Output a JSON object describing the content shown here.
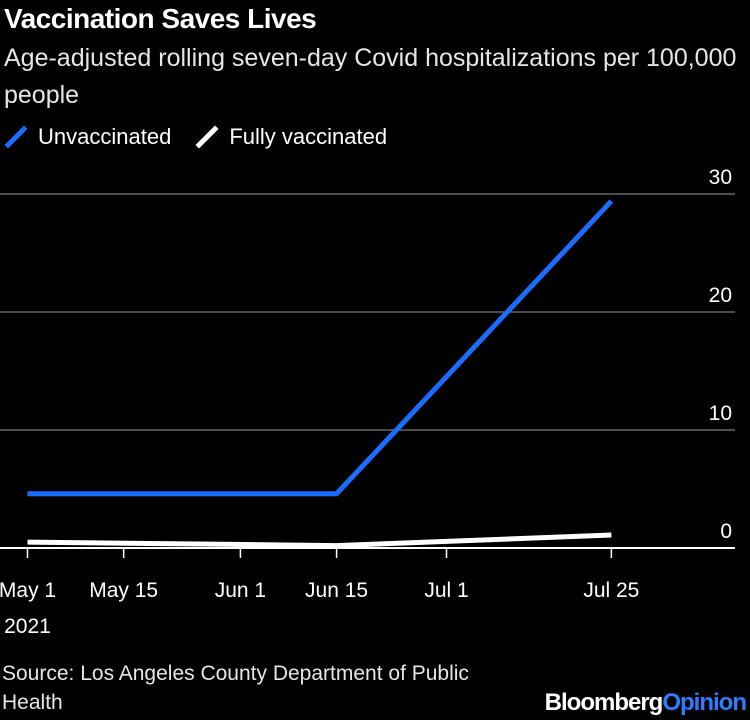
{
  "header": {
    "title": "Vaccination Saves Lives",
    "subtitle": "Age-adjusted rolling seven-day Covid hospitalizations per 100,000 people"
  },
  "footer": {
    "source": "Source: Los Angeles County Department of Public Health",
    "brand_main": "Bloomberg",
    "brand_accent": "Opinion"
  },
  "colors": {
    "unvaccinated": "#1a6dff",
    "fully_vaccinated": "#ffffff",
    "grid": "#666666",
    "brand_accent": "#2f7dff"
  },
  "chart_data": {
    "type": "line",
    "title": "Vaccination Saves Lives",
    "ylim": [
      0,
      30
    ],
    "yticks": [
      0,
      10,
      20,
      30
    ],
    "ytick_labels": [
      "0",
      "10",
      "20",
      "30"
    ],
    "y_axis_position": "right",
    "grid": true,
    "legend_position": "top-left",
    "xticks": [
      {
        "date": "2021-05-01",
        "label": "May 1",
        "sublabel": "2021"
      },
      {
        "date": "2021-05-15",
        "label": "May 15"
      },
      {
        "date": "2021-06-01",
        "label": "Jun 1"
      },
      {
        "date": "2021-06-15",
        "label": "Jun 15"
      },
      {
        "date": "2021-07-01",
        "label": "Jul 1"
      },
      {
        "date": "2021-07-25",
        "label": "Jul 25"
      }
    ],
    "xlim": [
      "2021-04-27",
      "2021-08-12"
    ],
    "series": [
      {
        "name": "Unvaccinated",
        "color": "#1a6dff",
        "x": [
          "2021-05-01",
          "2021-06-15",
          "2021-07-25"
        ],
        "y": [
          4.6,
          4.6,
          29.4
        ]
      },
      {
        "name": "Fully vaccinated",
        "color": "#ffffff",
        "x": [
          "2021-05-01",
          "2021-06-15",
          "2021-07-25"
        ],
        "y": [
          0.5,
          0.2,
          1.1
        ]
      }
    ]
  }
}
